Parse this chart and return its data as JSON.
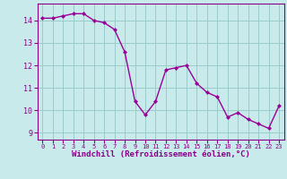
{
  "x": [
    0,
    1,
    2,
    3,
    4,
    5,
    6,
    7,
    8,
    9,
    10,
    11,
    12,
    13,
    14,
    15,
    16,
    17,
    18,
    19,
    20,
    21,
    22,
    23
  ],
  "y": [
    14.1,
    14.1,
    14.2,
    14.3,
    14.3,
    14.0,
    13.9,
    13.6,
    12.6,
    10.4,
    9.8,
    10.4,
    11.8,
    11.9,
    12.0,
    11.2,
    10.8,
    10.6,
    9.7,
    9.9,
    9.6,
    9.4,
    9.2,
    10.2
  ],
  "line_color": "#990099",
  "bg_color": "#c8eaea",
  "grid_color": "#99cccc",
  "xlabel": "Windchill (Refroidissement éolien,°C)",
  "xlabel_color": "#880088",
  "tick_color": "#880088",
  "axis_color": "#880088",
  "ylim": [
    8.7,
    14.75
  ],
  "yticks": [
    9,
    10,
    11,
    12,
    13,
    14
  ],
  "xlim": [
    -0.5,
    23.5
  ],
  "xticks": [
    0,
    1,
    2,
    3,
    4,
    5,
    6,
    7,
    8,
    9,
    10,
    11,
    12,
    13,
    14,
    15,
    16,
    17,
    18,
    19,
    20,
    21,
    22,
    23
  ]
}
